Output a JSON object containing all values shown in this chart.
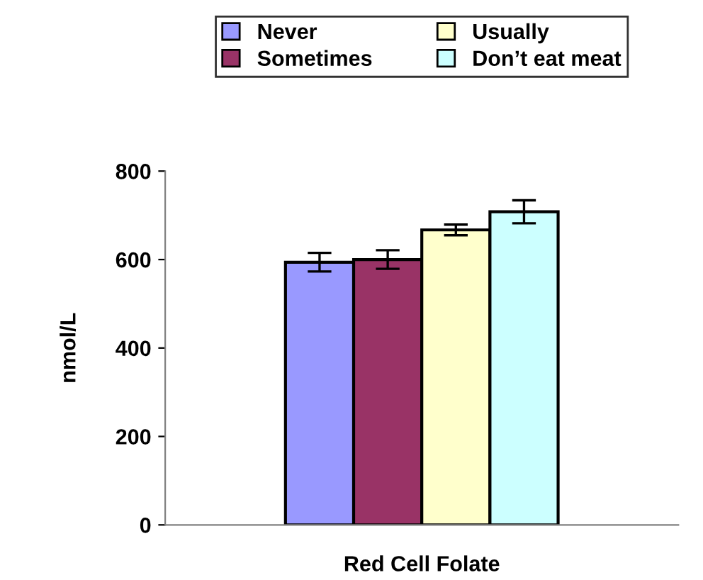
{
  "chart_data": {
    "type": "bar",
    "xlabel": "Red Cell Folate",
    "ylabel": "nmol/L",
    "categories": [
      null
    ],
    "series": [
      {
        "name": "Never",
        "color": "#9999ff",
        "values": [
          594
        ],
        "errors": [
          21
        ]
      },
      {
        "name": "Sometimes",
        "color": "#993366",
        "values": [
          600
        ],
        "errors": [
          21
        ]
      },
      {
        "name": "Usually",
        "color": "#ffffcc",
        "values": [
          667
        ],
        "errors": [
          12
        ]
      },
      {
        "name": "Don’t eat meat",
        "color": "#ccffff",
        "values": [
          708
        ],
        "errors": [
          26
        ]
      }
    ],
    "ylim": [
      0,
      800
    ],
    "yticks": [
      0,
      200,
      400,
      600,
      800
    ],
    "grid": false,
    "legend": "top"
  }
}
